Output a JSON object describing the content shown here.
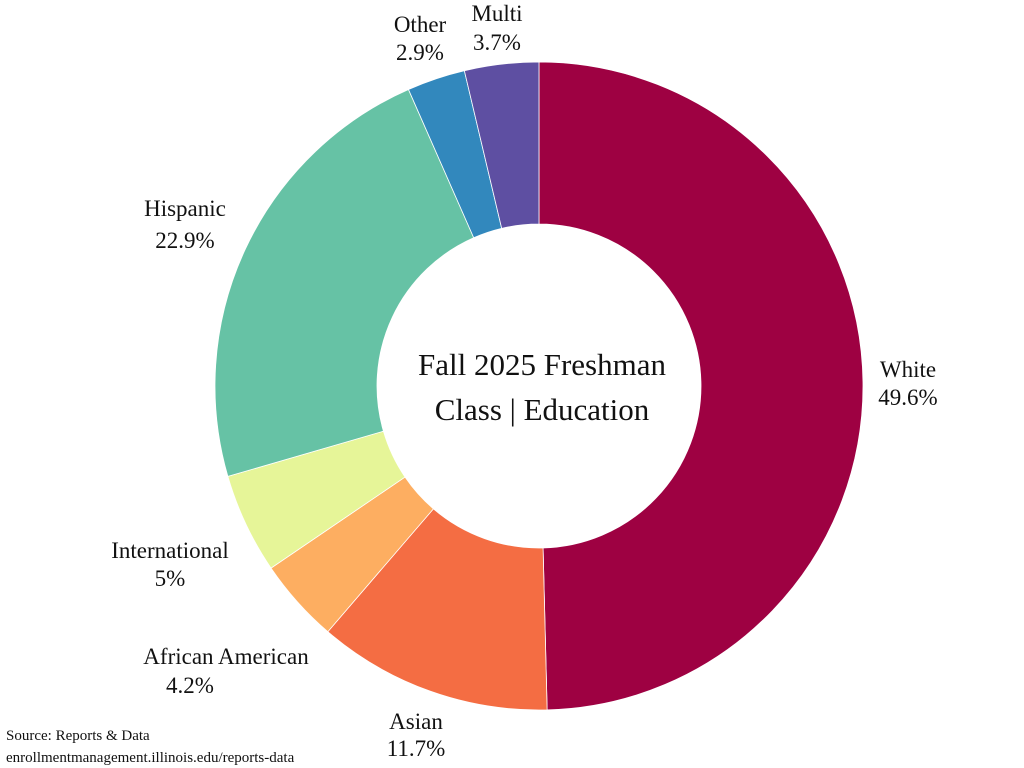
{
  "chart_data": {
    "type": "donut",
    "title": "Fall 2025 Freshman Class | Education",
    "title_lines": [
      "Fall 2025 Freshman",
      "Class | Education"
    ],
    "slices": [
      {
        "label": "White",
        "value": 49.6,
        "pct_text": "49.6%",
        "color": "#9e0142"
      },
      {
        "label": "Asian",
        "value": 11.7,
        "pct_text": "11.7%",
        "color": "#f46d43"
      },
      {
        "label": "African American",
        "value": 4.2,
        "pct_text": "4.2%",
        "color": "#fdae61"
      },
      {
        "label": "International",
        "value": 5,
        "pct_text": "5%",
        "color": "#e6f598"
      },
      {
        "label": "Hispanic",
        "value": 22.9,
        "pct_text": "22.9%",
        "color": "#66c2a5"
      },
      {
        "label": "Other",
        "value": 2.9,
        "pct_text": "2.9%",
        "color": "#3288bd"
      },
      {
        "label": "Multi",
        "value": 3.7,
        "pct_text": "3.7%",
        "color": "#5e4fa2"
      }
    ],
    "direction": "clockwise",
    "start": "top"
  },
  "source": {
    "line1": "Source: Reports & Data",
    "line2": "enrollmentmanagement.illinois.edu/reports-data"
  }
}
